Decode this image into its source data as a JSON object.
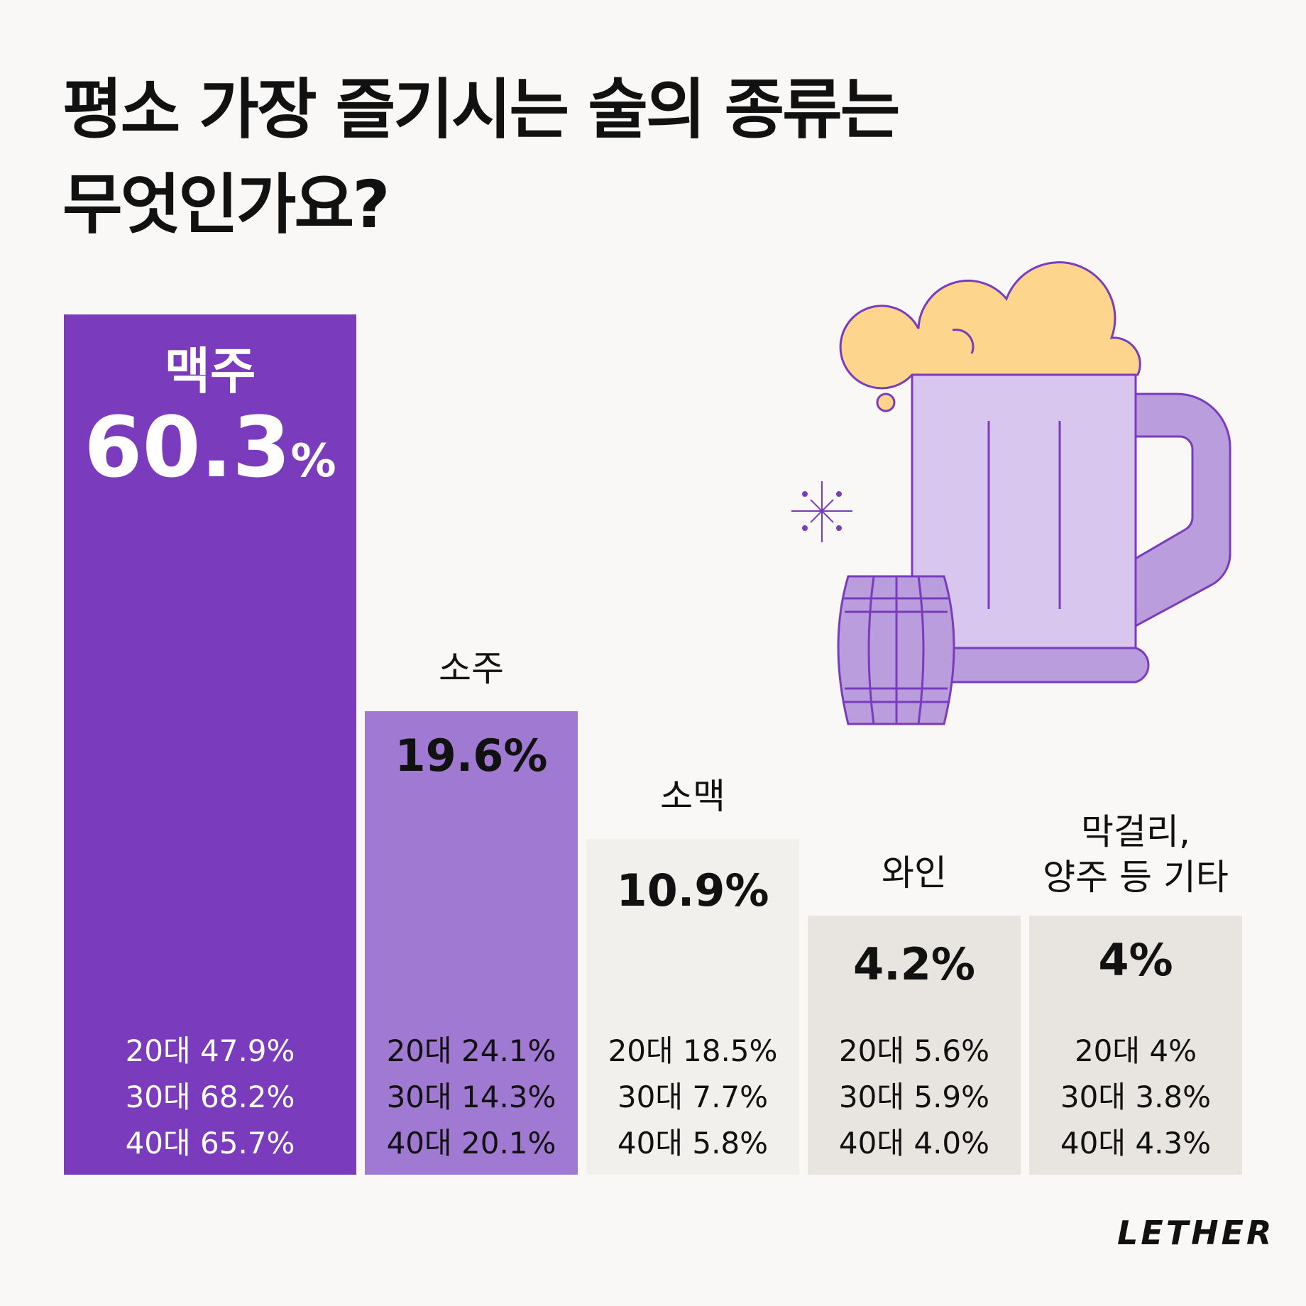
{
  "title": {
    "line1": "평소 가장 즐기시는 술의 종류는",
    "line2": "무엇인가요?"
  },
  "colors": {
    "beer": "#7a3bbd",
    "soju": "#a07ad2",
    "somaek": "#f2f0ec",
    "wine": "#e8e5e0",
    "other": "#e8e5e0"
  },
  "chart_data": {
    "type": "bar",
    "title": "평소 가장 즐기시는 술의 종류는 무엇인가요?",
    "categories": [
      "맥주",
      "소주",
      "소맥",
      "와인",
      "막걸리, 양주 등 기타"
    ],
    "values": [
      60.3,
      19.6,
      10.9,
      4.2,
      4
    ],
    "unit": "%",
    "bars": [
      {
        "category": "맥주",
        "value_label": "60.3",
        "value_unit": "%",
        "ages": [
          "20대 47.9%",
          "30대 68.2%",
          "40대 65.7%"
        ]
      },
      {
        "category": "소주",
        "value_label": "19.6%",
        "ages": [
          "20대 24.1%",
          "30대 14.3%",
          "40대 20.1%"
        ]
      },
      {
        "category": "소맥",
        "value_label": "10.9%",
        "ages": [
          "20대 18.5%",
          "30대 7.7%",
          "40대 5.8%"
        ]
      },
      {
        "category": "와인",
        "value_label": "4.2%",
        "ages": [
          "20대 5.6%",
          "30대 5.9%",
          "40대 4.0%"
        ]
      },
      {
        "category_lines": [
          "막걸리,",
          "양주 등 기타"
        ],
        "value_label": "4%",
        "ages": [
          "20대 4%",
          "30대 3.8%",
          "40대 4.3%"
        ]
      }
    ],
    "age_series": [
      {
        "name": "20대",
        "values": [
          47.9,
          24.1,
          18.5,
          5.6,
          4
        ]
      },
      {
        "name": "30대",
        "values": [
          68.2,
          14.3,
          7.7,
          5.9,
          3.8
        ]
      },
      {
        "name": "40대",
        "values": [
          65.7,
          20.1,
          5.8,
          4.0,
          4.3
        ]
      }
    ]
  },
  "brand": "LETHER"
}
